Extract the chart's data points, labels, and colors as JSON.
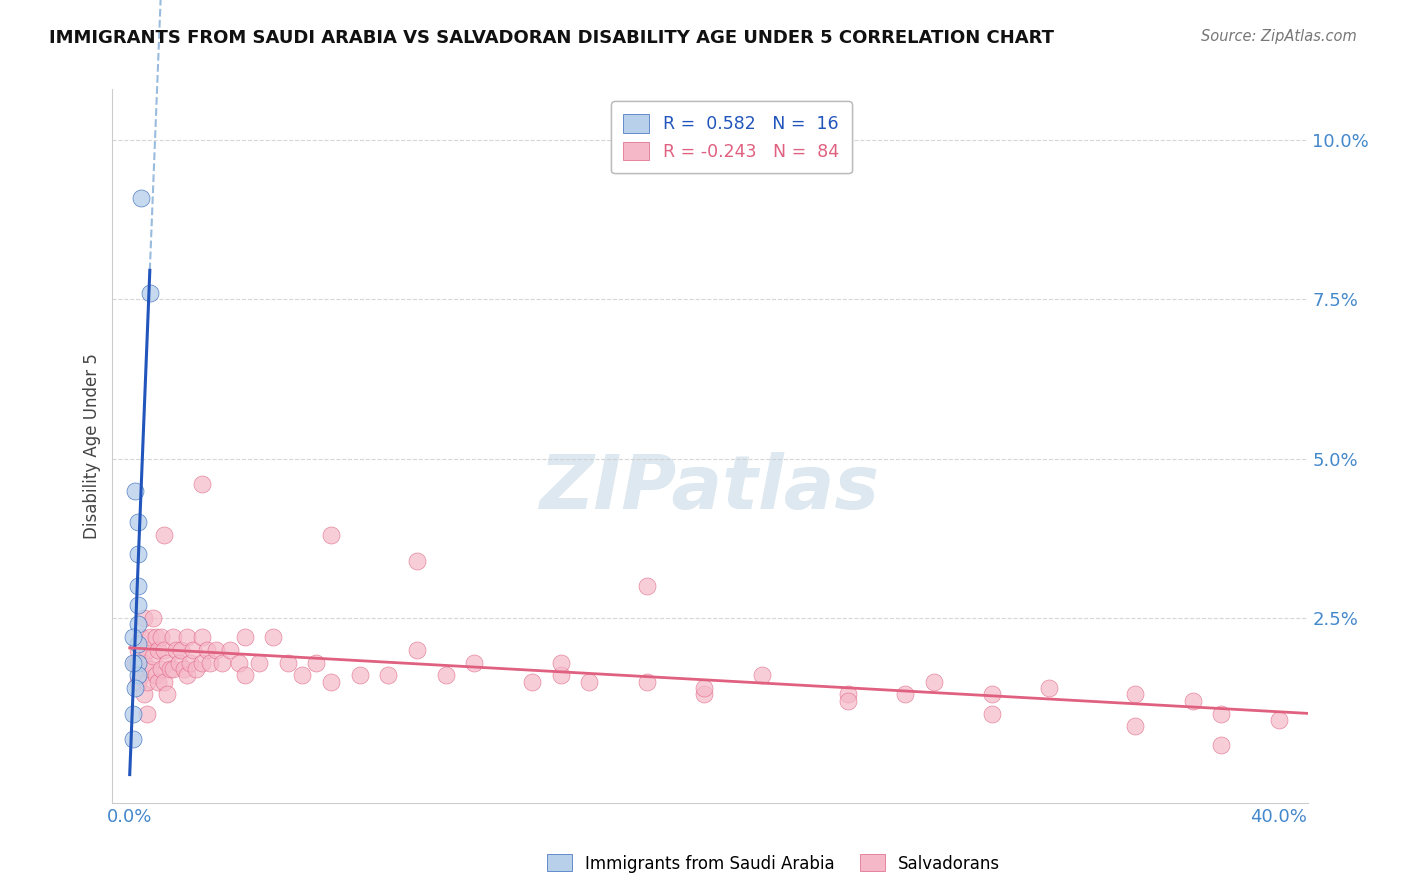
{
  "title": "IMMIGRANTS FROM SAUDI ARABIA VS SALVADORAN DISABILITY AGE UNDER 5 CORRELATION CHART",
  "source": "Source: ZipAtlas.com",
  "ylabel": "Disability Age Under 5",
  "legend1_label": "Immigrants from Saudi Arabia",
  "legend2_label": "Salvadorans",
  "R1": 0.582,
  "N1": 16,
  "R2": -0.243,
  "N2": 84,
  "blue_fill": "#b8d0ea",
  "blue_edge": "#3366bb",
  "pink_fill": "#f5b8c8",
  "pink_edge": "#e06080",
  "blue_line": "#2255bb",
  "pink_line": "#e06080",
  "blue_dash_color": "#99bbdd",
  "watermark_color": "#dde8f0",
  "bg": "#ffffff",
  "grid_color": "#cccccc",
  "title_color": "#111111",
  "source_color": "#777777",
  "axis_tick_color": "#4488cc",
  "xlim": [
    -0.006,
    0.41
  ],
  "ylim": [
    -0.004,
    0.108
  ],
  "blue_x": [
    0.004,
    0.007,
    0.002,
    0.003,
    0.003,
    0.003,
    0.003,
    0.003,
    0.003,
    0.003,
    0.003,
    0.002,
    0.001,
    0.001,
    0.001,
    0.001
  ],
  "blue_y": [
    0.091,
    0.076,
    0.045,
    0.04,
    0.035,
    0.03,
    0.027,
    0.024,
    0.021,
    0.018,
    0.016,
    0.014,
    0.022,
    0.018,
    0.01,
    0.006
  ],
  "pink_x": [
    0.002,
    0.003,
    0.003,
    0.004,
    0.004,
    0.005,
    0.005,
    0.005,
    0.006,
    0.006,
    0.007,
    0.007,
    0.008,
    0.008,
    0.009,
    0.009,
    0.01,
    0.01,
    0.011,
    0.011,
    0.012,
    0.012,
    0.013,
    0.013,
    0.014,
    0.015,
    0.015,
    0.016,
    0.017,
    0.018,
    0.019,
    0.02,
    0.02,
    0.021,
    0.022,
    0.023,
    0.025,
    0.025,
    0.027,
    0.028,
    0.03,
    0.032,
    0.035,
    0.038,
    0.04,
    0.04,
    0.045,
    0.05,
    0.055,
    0.06,
    0.065,
    0.07,
    0.08,
    0.09,
    0.1,
    0.11,
    0.12,
    0.14,
    0.15,
    0.16,
    0.18,
    0.2,
    0.22,
    0.25,
    0.28,
    0.3,
    0.32,
    0.35,
    0.37,
    0.38,
    0.4,
    0.15,
    0.2,
    0.25,
    0.3,
    0.35,
    0.025,
    0.012,
    0.07,
    0.1,
    0.18,
    0.27,
    0.38,
    0.006
  ],
  "pink_y": [
    0.018,
    0.02,
    0.015,
    0.022,
    0.016,
    0.025,
    0.018,
    0.013,
    0.02,
    0.015,
    0.022,
    0.017,
    0.025,
    0.019,
    0.022,
    0.016,
    0.02,
    0.015,
    0.022,
    0.017,
    0.02,
    0.015,
    0.018,
    0.013,
    0.017,
    0.022,
    0.017,
    0.02,
    0.018,
    0.02,
    0.017,
    0.022,
    0.016,
    0.018,
    0.02,
    0.017,
    0.022,
    0.018,
    0.02,
    0.018,
    0.02,
    0.018,
    0.02,
    0.018,
    0.022,
    0.016,
    0.018,
    0.022,
    0.018,
    0.016,
    0.018,
    0.015,
    0.016,
    0.016,
    0.02,
    0.016,
    0.018,
    0.015,
    0.016,
    0.015,
    0.015,
    0.013,
    0.016,
    0.013,
    0.015,
    0.013,
    0.014,
    0.013,
    0.012,
    0.01,
    0.009,
    0.018,
    0.014,
    0.012,
    0.01,
    0.008,
    0.046,
    0.038,
    0.038,
    0.034,
    0.03,
    0.013,
    0.005,
    0.01
  ]
}
